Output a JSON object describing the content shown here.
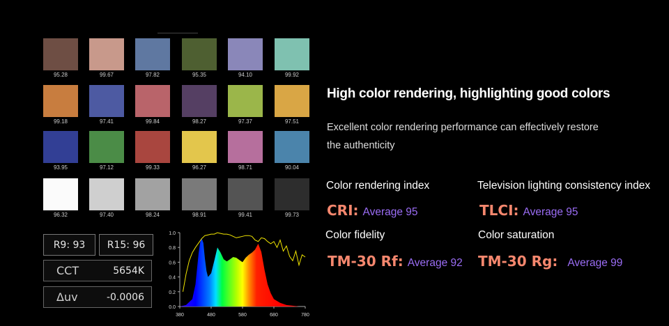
{
  "colors": {
    "accent_salmon": "#f5876e",
    "accent_purple": "#9b6df5"
  },
  "swatches": [
    {
      "color": "#6e4e44",
      "value": "95.28"
    },
    {
      "color": "#c8998b",
      "value": "99.67"
    },
    {
      "color": "#5f78a1",
      "value": "97.82"
    },
    {
      "color": "#4e5f31",
      "value": "95.35"
    },
    {
      "color": "#8a87b9",
      "value": "94.10"
    },
    {
      "color": "#7fc1b0",
      "value": "99.92"
    },
    {
      "color": "#c87d3f",
      "value": "99.18"
    },
    {
      "color": "#4d5aa2",
      "value": "97.41"
    },
    {
      "color": "#b9646a",
      "value": "99.84"
    },
    {
      "color": "#553f63",
      "value": "98.27"
    },
    {
      "color": "#9bb64a",
      "value": "97.37"
    },
    {
      "color": "#d9a645",
      "value": "97.51"
    },
    {
      "color": "#323f95",
      "value": "93.95"
    },
    {
      "color": "#4b8c47",
      "value": "97.12"
    },
    {
      "color": "#a9463f",
      "value": "99.33"
    },
    {
      "color": "#e3c64c",
      "value": "96.27"
    },
    {
      "color": "#b66f9d",
      "value": "98.71"
    },
    {
      "color": "#4b84ab",
      "value": "90.04"
    },
    {
      "color": "#fbfbfb",
      "value": "96.32"
    },
    {
      "color": "#cfcfcf",
      "value": "97.40"
    },
    {
      "color": "#a2a2a2",
      "value": "98.24"
    },
    {
      "color": "#7a7a7a",
      "value": "98.91"
    },
    {
      "color": "#545454",
      "value": "99.41"
    },
    {
      "color": "#2d2d2d",
      "value": "99.73"
    }
  ],
  "meter": {
    "r9": "R9: 93",
    "r15": "R15: 96",
    "cct_label": "CCT",
    "cct_value": "5654K",
    "duv_label": "Δuv",
    "duv_value": "-0.0006"
  },
  "chart_data": {
    "type": "area",
    "title": "",
    "xlabel": "",
    "ylabel": "",
    "xlim": [
      380,
      780
    ],
    "ylim": [
      0,
      1.0
    ],
    "x_ticks": [
      "380",
      "480",
      "580",
      "680",
      "780"
    ],
    "y_ticks": [
      "0.0",
      "0.2",
      "0.4",
      "0.6",
      "0.8",
      "1.0"
    ],
    "series": [
      {
        "x": [
          380,
          400,
          420,
          430,
          440,
          445,
          450,
          455,
          460,
          465,
          470,
          480,
          490,
          500,
          510,
          520,
          530,
          540,
          550,
          560,
          570,
          580,
          590,
          600,
          610,
          620,
          630,
          640,
          650,
          660,
          670,
          680,
          700,
          720,
          740,
          760,
          780
        ],
        "values": [
          0.0,
          0.02,
          0.1,
          0.3,
          0.72,
          0.87,
          0.92,
          0.86,
          0.65,
          0.48,
          0.4,
          0.45,
          0.62,
          0.8,
          0.73,
          0.64,
          0.61,
          0.64,
          0.67,
          0.66,
          0.63,
          0.6,
          0.66,
          0.7,
          0.73,
          0.77,
          0.85,
          0.74,
          0.5,
          0.3,
          0.18,
          0.1,
          0.05,
          0.02,
          0.01,
          0.0,
          0.0
        ]
      },
      {
        "x": [
          390,
          400,
          410,
          420,
          430,
          440,
          450,
          460,
          470,
          480,
          490,
          500,
          510,
          520,
          530,
          540,
          550,
          560,
          570,
          580,
          590,
          600,
          610,
          620,
          630,
          640,
          650,
          660,
          670,
          680,
          690,
          700,
          710,
          720,
          730,
          740,
          750,
          760,
          770,
          780
        ],
        "values": [
          0.2,
          0.44,
          0.62,
          0.73,
          0.8,
          0.86,
          0.92,
          0.96,
          0.97,
          0.98,
          0.98,
          1.0,
          0.99,
          0.98,
          0.98,
          0.97,
          0.95,
          0.93,
          0.94,
          0.95,
          0.96,
          0.96,
          0.95,
          0.9,
          0.88,
          0.93,
          0.92,
          0.88,
          0.85,
          0.88,
          0.8,
          0.9,
          0.75,
          0.82,
          0.68,
          0.62,
          0.75,
          0.56,
          0.7,
          0.67
        ]
      }
    ]
  },
  "headline": "High color rendering, highlighting good colors",
  "description": "Excellent color rendering performance can effectively restore the authenticity",
  "metrics": {
    "cri_label": "Color rendering index",
    "cri_key": "CRI:",
    "cri_avg": "Average 95",
    "tlci_label": "Television lighting consistency index",
    "tlci_key": "TLCI:",
    "tlci_avg": "Average 95",
    "rf_label": "Color fidelity",
    "rf_key": "TM-30 Rf:",
    "rf_avg": "Average 92",
    "rg_label": "Color saturation",
    "rg_key": "TM-30 Rg:",
    "rg_avg": "Average 99"
  }
}
